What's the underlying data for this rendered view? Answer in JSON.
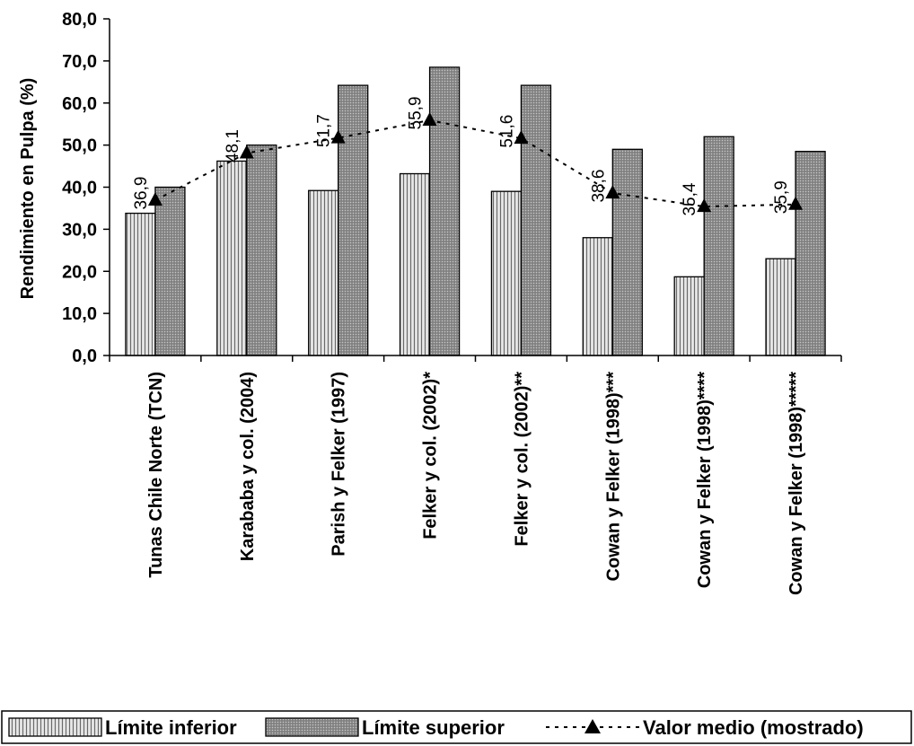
{
  "chart_data": {
    "type": "bar",
    "ylabel": "Rendimiento en Pulpa (%)",
    "ylim": [
      0,
      80
    ],
    "yticks": [
      "0,0",
      "10,0",
      "20,0",
      "30,0",
      "40,0",
      "50,0",
      "60,0",
      "70,0",
      "80,0"
    ],
    "categories": [
      "Tunas Chile Norte (TCN)",
      "Karababa y col. (2004)",
      "Parish y Felker (1997)",
      "Felker y col. (2002)*",
      "Felker y col. (2002)**",
      "Cowan y Felker (1998)***",
      "Cowan y Felker (1998)****",
      "Cowan y Felker (1998)*****"
    ],
    "series": [
      {
        "name": "Límite inferior",
        "type": "bar",
        "pattern": "vertical-lines",
        "values": [
          33.8,
          46.2,
          39.2,
          43.2,
          39.0,
          28.0,
          18.7,
          23.0
        ]
      },
      {
        "name": "Límite superior",
        "type": "bar",
        "pattern": "dense-gray",
        "values": [
          40.0,
          50.0,
          64.2,
          68.5,
          64.2,
          49.0,
          52.0,
          48.5
        ]
      },
      {
        "name": "Valor medio (mostrado)",
        "type": "line",
        "style": "dotted-with-triangle-markers",
        "values": [
          36.9,
          48.1,
          51.7,
          55.9,
          51.6,
          38.6,
          35.4,
          35.9
        ],
        "labels": [
          "36,9",
          "48,1",
          "51,7",
          "55,9",
          "51,6",
          "38,6",
          "35,4",
          "35,9"
        ]
      }
    ],
    "legend": "bottom",
    "grid": false
  }
}
